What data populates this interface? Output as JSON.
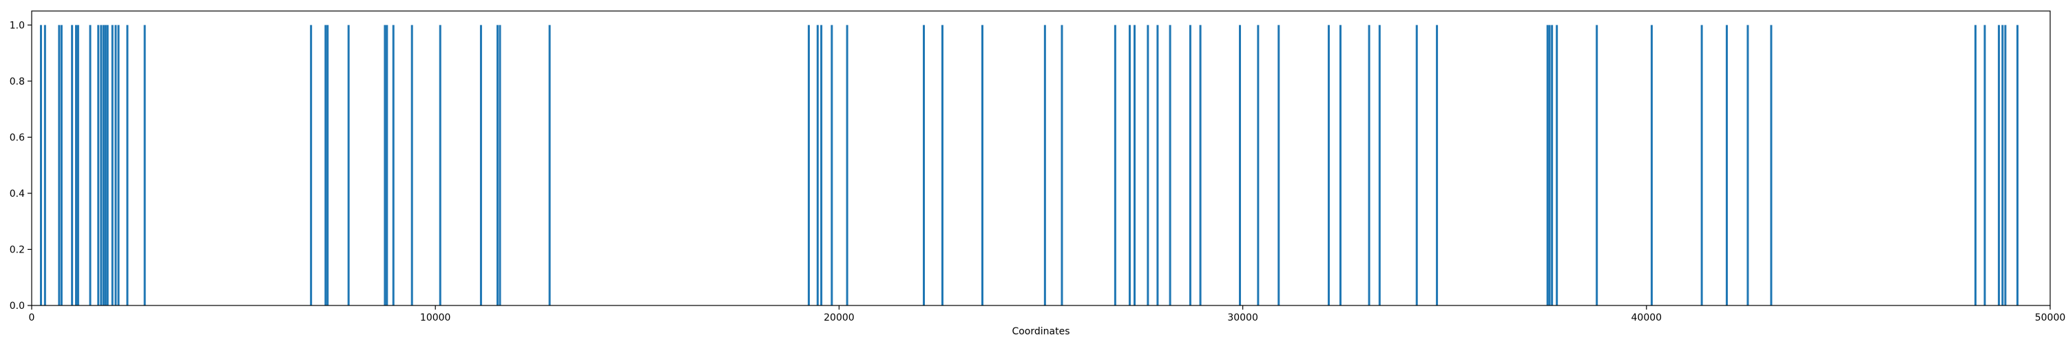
{
  "chart_data": {
    "type": "bar",
    "title": "",
    "xlabel": "Coordinates",
    "ylabel": "",
    "xlim": [
      0,
      50000
    ],
    "ylim": [
      0.0,
      1.05
    ],
    "x_ticks": [
      0,
      10000,
      20000,
      30000,
      40000,
      50000
    ],
    "x_tick_labels": [
      "0",
      "10000",
      "20000",
      "30000",
      "40000",
      "50000"
    ],
    "y_ticks": [
      0.0,
      0.2,
      0.4,
      0.6,
      0.8,
      1.0
    ],
    "y_tick_labels": [
      "0.0",
      "0.2",
      "0.4",
      "0.6",
      "0.8",
      "1.0"
    ],
    "grid": false,
    "series": [
      {
        "color": "#1f77b4",
        "x": [
          230,
          330,
          680,
          740,
          1000,
          1100,
          1150,
          1450,
          1650,
          1720,
          1780,
          1830,
          1880,
          2000,
          2080,
          2150,
          2370,
          2800,
          6920,
          7280,
          7330,
          7850,
          8750,
          8960,
          8800,
          9420,
          10120,
          11130,
          11540,
          11600,
          12830,
          19250,
          19470,
          19560,
          19820,
          20200,
          22100,
          22560,
          23550,
          25100,
          25520,
          26840,
          27200,
          27320,
          27650,
          27890,
          28200,
          28700,
          28950,
          29930,
          30380,
          30890,
          32130,
          32420,
          33130,
          33390,
          34310,
          34810,
          37550,
          37600,
          37660,
          37780,
          38770,
          40130,
          41370,
          41990,
          42510,
          43090,
          48150,
          48380,
          48730,
          48820,
          48890,
          49190
        ],
        "values": [
          1,
          1,
          1,
          1,
          1,
          1,
          1,
          1,
          1,
          1,
          1,
          1,
          1,
          1,
          1,
          1,
          1,
          1,
          1,
          1,
          1,
          1,
          1,
          1,
          1,
          1,
          1,
          1,
          1,
          1,
          1,
          1,
          1,
          1,
          1,
          1,
          1,
          1,
          1,
          1,
          1,
          1,
          1,
          1,
          1,
          1,
          1,
          1,
          1,
          1,
          1,
          1,
          1,
          1,
          1,
          1,
          1,
          1,
          1,
          1,
          1,
          1,
          1,
          1,
          1,
          1,
          1,
          1,
          1,
          1,
          1,
          1,
          1,
          1
        ]
      }
    ]
  }
}
